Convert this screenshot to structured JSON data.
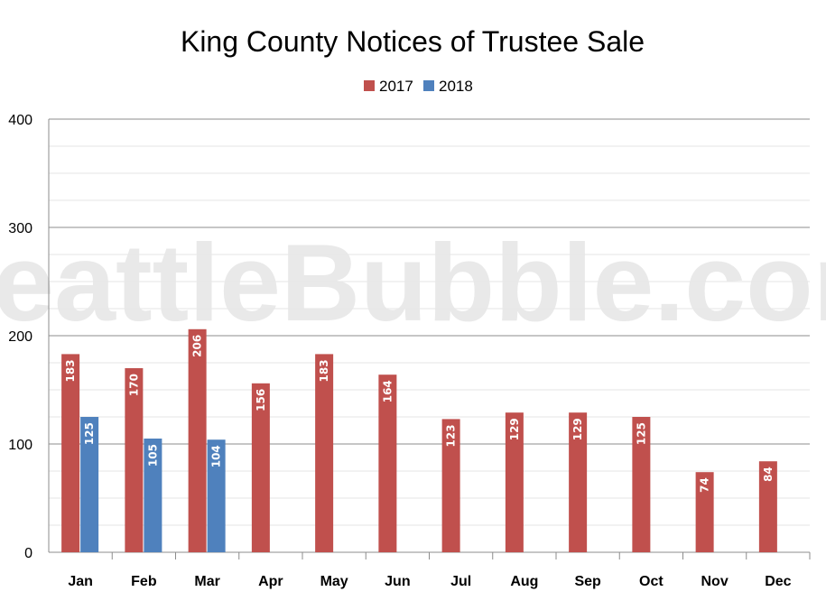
{
  "colors": {
    "series_2017": "#c0504d",
    "series_2018": "#4f81bd",
    "grid_major": "#8c8c8c",
    "grid_minor": "#e6e6e6",
    "watermark": "#e9e9e9"
  },
  "watermark": "SeattleBubble.com",
  "chart_data": {
    "type": "bar",
    "title": "King County Notices of Trustee Sale",
    "xlabel": "",
    "ylabel": "",
    "ylim": [
      0,
      400
    ],
    "yticks": [
      0,
      100,
      200,
      300,
      400
    ],
    "grid": true,
    "legend_position": "top-center",
    "categories": [
      "Jan",
      "Feb",
      "Mar",
      "Apr",
      "May",
      "Jun",
      "Jul",
      "Aug",
      "Sep",
      "Oct",
      "Nov",
      "Dec"
    ],
    "series": [
      {
        "name": "2017",
        "values": [
          183,
          170,
          206,
          156,
          183,
          164,
          123,
          129,
          129,
          125,
          74,
          84
        ]
      },
      {
        "name": "2018",
        "values": [
          125,
          105,
          104,
          null,
          null,
          null,
          null,
          null,
          null,
          null,
          null,
          null
        ]
      }
    ]
  }
}
